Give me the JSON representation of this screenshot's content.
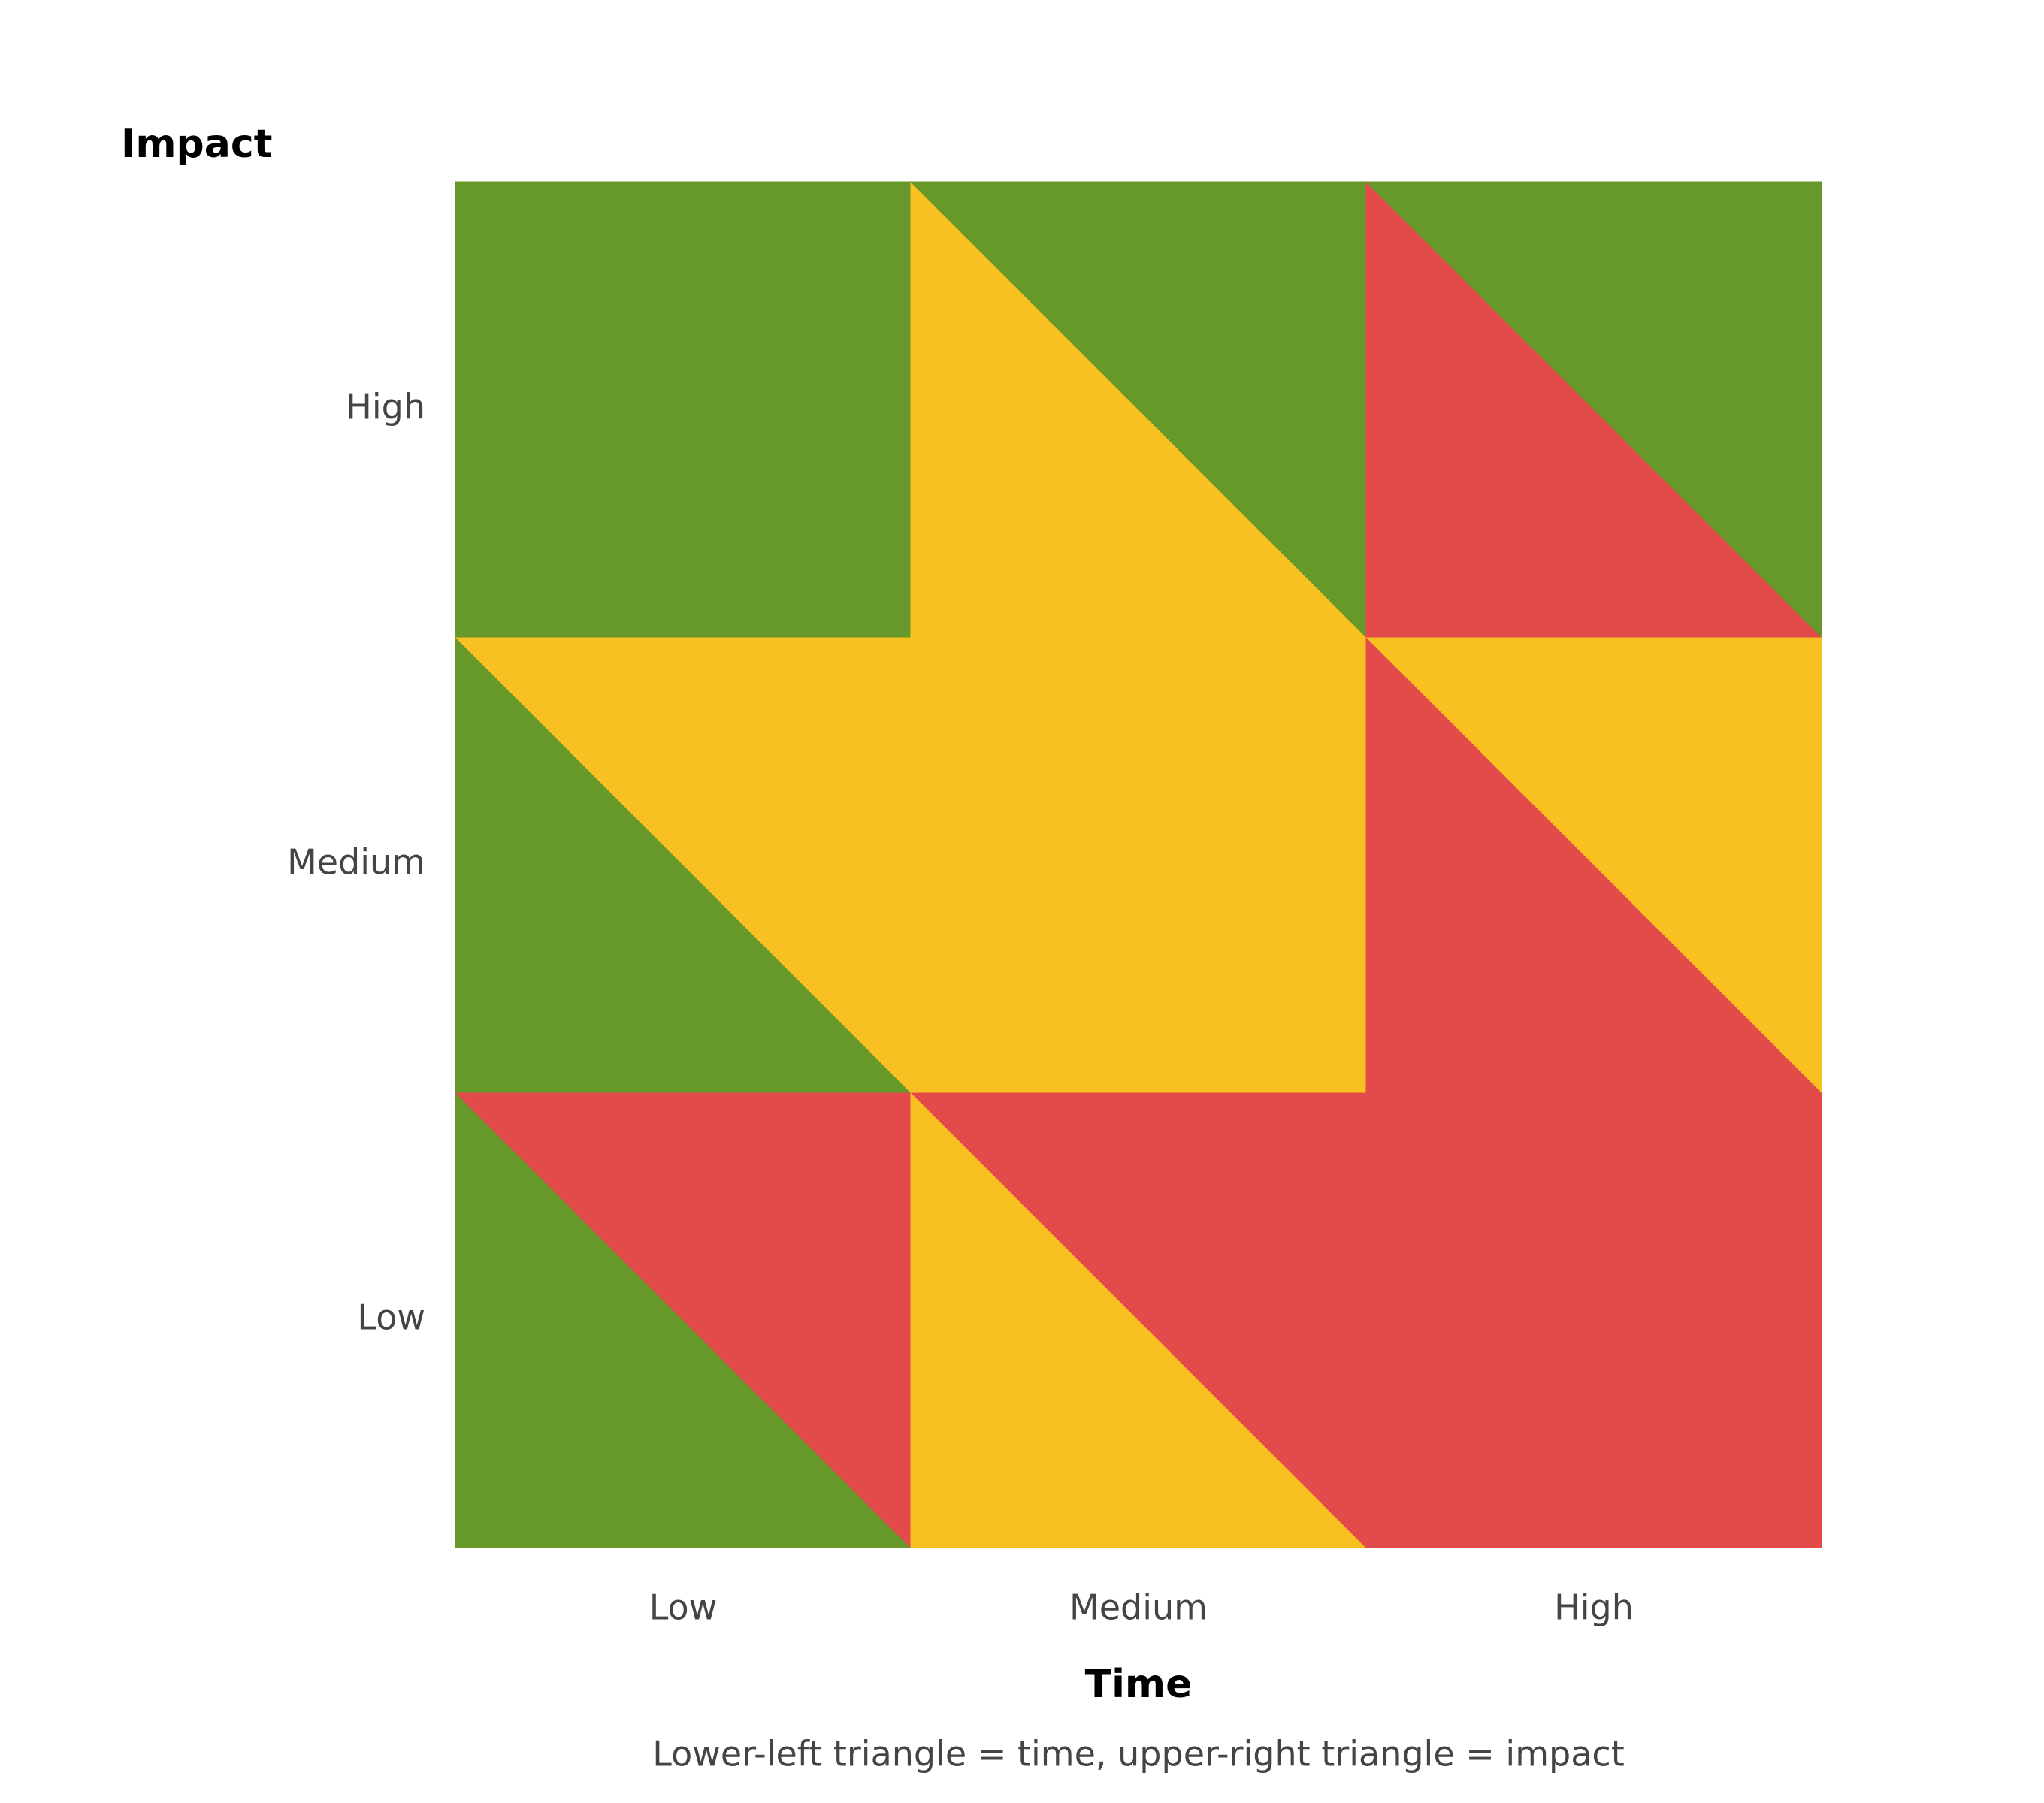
{
  "y_axis": {
    "title": "Impact",
    "labels": [
      "Low",
      "Medium",
      "High"
    ],
    "colors": [
      "#e34b4b",
      "#f9c022",
      "#66982a"
    ]
  },
  "x_axis": {
    "title": "Time",
    "labels": [
      "Low",
      "Medium",
      "High"
    ],
    "colors": [
      "#66982a",
      "#f9c022",
      "#e34b4b"
    ]
  },
  "caption": "Lower-left triangle = time, upper-right triangle = impact"
}
